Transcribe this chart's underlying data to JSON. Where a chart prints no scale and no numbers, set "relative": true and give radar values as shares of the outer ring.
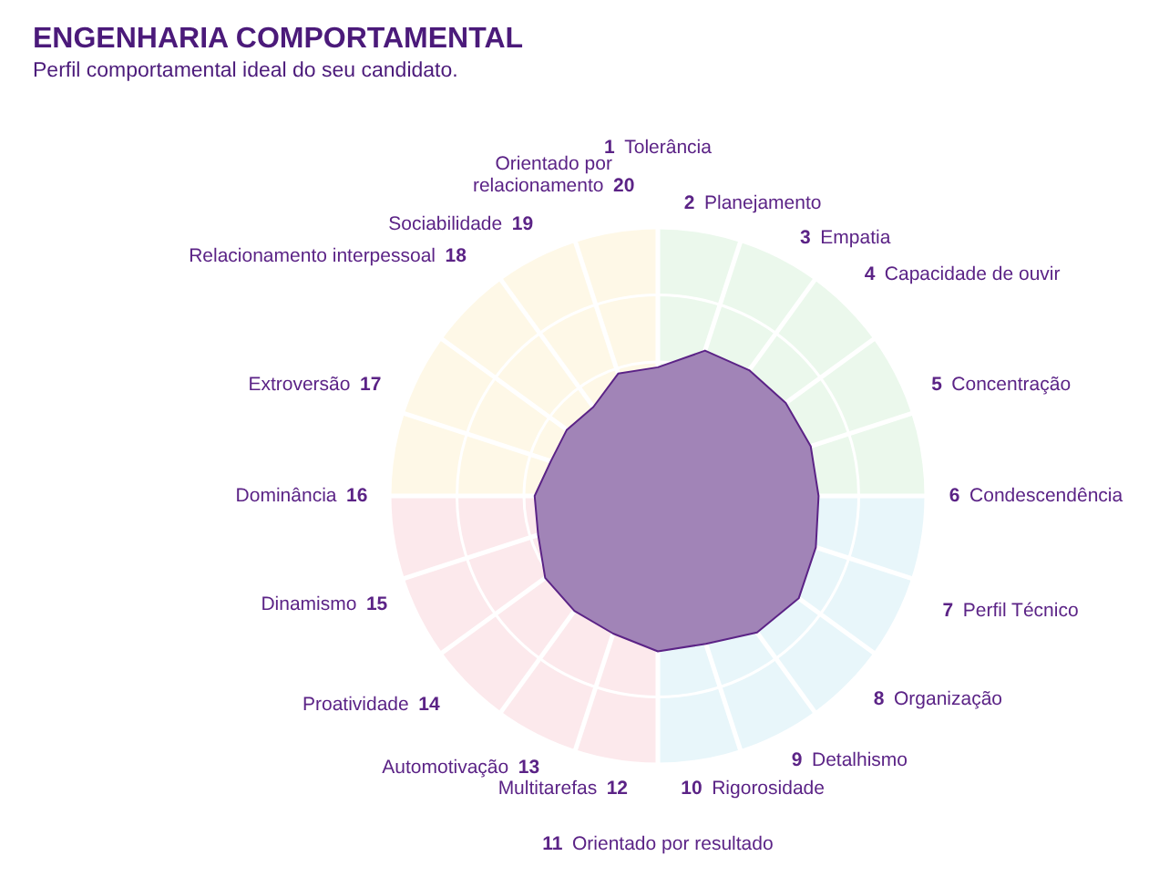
{
  "chart_data": {
    "type": "radar",
    "title": "ENGENHARIA COMPORTAMENTAL",
    "subtitle": "Perfil comportamental ideal do seu candidato.",
    "relative": true,
    "categories": [
      "1 Tolerância",
      "2 Planejamento",
      "3 Empatia",
      "4 Capacidade de ouvir",
      "5 Concentração",
      "6 Condescendência",
      "7 Perfil Técnico",
      "8 Organização",
      "9 Detalhismo",
      "10 Rigorosidade",
      "11 Orientado por resultado",
      "Multitarefas 12",
      "Automotivação 13",
      "Proatividade 14",
      "Dinamismo 15",
      "Dominância 16",
      "Extroversão 17",
      "Relacionamento interpessoal 18",
      "Sociabilidade 19",
      "Orientado por relacionamento 20"
    ],
    "series": [
      {
        "color": "#a184b7",
        "values": [
          0.48,
          0.57,
          0.58,
          0.59,
          0.6,
          0.6,
          0.62,
          0.65,
          0.63,
          0.58,
          0.58,
          0.54,
          0.53,
          0.52,
          0.47,
          0.46,
          0.42,
          0.42,
          0.41,
          0.48
        ]
      }
    ]
  }
}
